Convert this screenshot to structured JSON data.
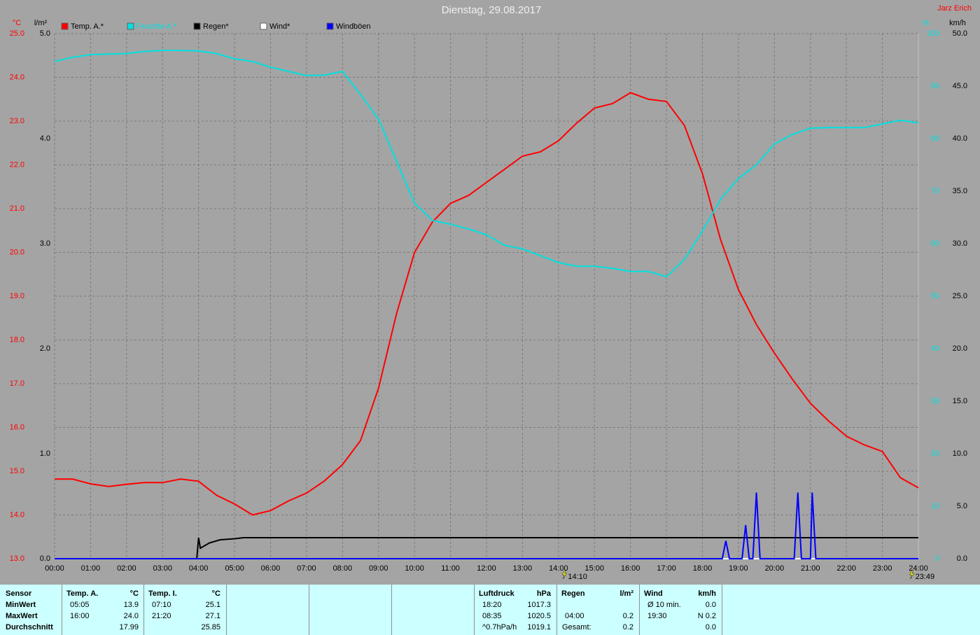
{
  "chart_data": {
    "type": "line",
    "title": "Dienstag, 29.08.2017",
    "author": "Jarz Erich",
    "y_label": "°C",
    "y2_label": "l/m²",
    "y3_label": "%",
    "y4_label": "km/h",
    "xlim": [
      0,
      24
    ],
    "xticks": [
      {
        "value": 0,
        "label": "00:00"
      },
      {
        "value": 1,
        "label": "01:00"
      },
      {
        "value": 2,
        "label": "02:00"
      },
      {
        "value": 3,
        "label": "03:00"
      },
      {
        "value": 4,
        "label": "04:00"
      },
      {
        "value": 5,
        "label": "05:00"
      },
      {
        "value": 6,
        "label": "06:00"
      },
      {
        "value": 7,
        "label": "07:00"
      },
      {
        "value": 8,
        "label": "08:00"
      },
      {
        "value": 9,
        "label": "09:00"
      },
      {
        "value": 10,
        "label": "10:00"
      },
      {
        "value": 11,
        "label": "11:00"
      },
      {
        "value": 12,
        "label": "12:00"
      },
      {
        "value": 13,
        "label": "13:00"
      },
      {
        "value": 14,
        "label": "14:00"
      },
      {
        "value": 15,
        "label": "15:00"
      },
      {
        "value": 16,
        "label": "16:00"
      },
      {
        "value": 17,
        "label": "17:00"
      },
      {
        "value": 18,
        "label": "18:00"
      },
      {
        "value": 19,
        "label": "19:00"
      },
      {
        "value": 20,
        "label": "20:00"
      },
      {
        "value": 21,
        "label": "21:00"
      },
      {
        "value": 22,
        "label": "22:00"
      },
      {
        "value": 23,
        "label": "23:00"
      },
      {
        "value": 24,
        "label": "24:00"
      }
    ],
    "ylim": [
      13,
      25
    ],
    "yticks": [
      {
        "value": 13,
        "label": "13.0"
      },
      {
        "value": 14,
        "label": "14.0"
      },
      {
        "value": 15,
        "label": "15.0"
      },
      {
        "value": 16,
        "label": "16.0"
      },
      {
        "value": 17,
        "label": "17.0"
      },
      {
        "value": 18,
        "label": "18.0"
      },
      {
        "value": 19,
        "label": "19.0"
      },
      {
        "value": 20,
        "label": "20.0"
      },
      {
        "value": 21,
        "label": "21.0"
      },
      {
        "value": 22,
        "label": "22.0"
      },
      {
        "value": 23,
        "label": "23.0"
      },
      {
        "value": 24,
        "label": "24.0"
      },
      {
        "value": 25,
        "label": "25.0"
      }
    ],
    "y2lim": [
      0,
      5
    ],
    "y2ticks": [
      {
        "value": 0,
        "label": "0.0"
      },
      {
        "value": 1,
        "label": "1.0"
      },
      {
        "value": 2,
        "label": "2.0"
      },
      {
        "value": 3,
        "label": "3.0"
      },
      {
        "value": 4,
        "label": "4.0"
      },
      {
        "value": 5,
        "label": "5.0"
      }
    ],
    "y3lim": [
      0,
      100
    ],
    "y3ticks": [
      0,
      10,
      20,
      30,
      40,
      50,
      60,
      70,
      80,
      90,
      100
    ],
    "y4lim": [
      0,
      50
    ],
    "y4ticks": [
      {
        "value": 0,
        "label": "0.0"
      },
      {
        "value": 5,
        "label": "5.0"
      },
      {
        "value": 10,
        "label": "10.0"
      },
      {
        "value": 15,
        "label": "15.0"
      },
      {
        "value": 20,
        "label": "20.0"
      },
      {
        "value": 25,
        "label": "25.0"
      },
      {
        "value": 30,
        "label": "30.0"
      },
      {
        "value": 35,
        "label": "35.0"
      },
      {
        "value": 40,
        "label": "40.0"
      },
      {
        "value": 45,
        "label": "45.0"
      },
      {
        "value": 50,
        "label": "50.0"
      }
    ],
    "grid": true,
    "series": [
      {
        "name": "Temp. A.*",
        "color": "#ff0000",
        "axis": "y",
        "x": [
          0,
          0.5,
          1,
          1.5,
          2,
          2.5,
          3,
          3.5,
          4,
          4.5,
          5,
          5.5,
          6,
          6.5,
          7,
          7.5,
          8,
          8.5,
          9,
          9.5,
          10,
          10.5,
          11,
          11.5,
          12,
          12.5,
          13,
          13.5,
          14,
          14.5,
          15,
          15.5,
          16,
          16.5,
          17,
          17.5,
          18,
          18.5,
          19,
          19.5,
          20,
          20.5,
          21,
          21.5,
          22,
          22.5,
          23,
          23.5,
          24
        ],
        "values": [
          14.82,
          14.82,
          14.71,
          14.65,
          14.7,
          14.74,
          14.74,
          14.82,
          14.77,
          14.45,
          14.25,
          14.0,
          14.1,
          14.32,
          14.5,
          14.78,
          15.15,
          15.7,
          16.9,
          18.6,
          20.0,
          20.7,
          21.12,
          21.3,
          21.6,
          21.9,
          22.2,
          22.3,
          22.55,
          22.95,
          23.3,
          23.4,
          23.65,
          23.5,
          23.45,
          22.9,
          21.8,
          20.3,
          19.15,
          18.35,
          17.7,
          17.1,
          16.55,
          16.15,
          15.8,
          15.6,
          15.45,
          14.85,
          14.62
        ]
      },
      {
        "name": "Feuchte A.*",
        "color": "#00e0e0",
        "axis": "y3",
        "x": [
          0,
          0.5,
          1,
          1.5,
          2,
          2.5,
          3,
          3.5,
          4,
          4.5,
          5,
          5.5,
          6,
          6.5,
          7,
          7.5,
          8,
          8.5,
          9,
          9.5,
          10,
          10.5,
          11,
          11.5,
          12,
          12.5,
          13,
          13.5,
          14,
          14.5,
          15,
          15.5,
          16,
          16.5,
          17,
          17.5,
          18,
          18.5,
          19,
          19.5,
          20,
          20.5,
          21,
          21.5,
          22,
          22.5,
          23,
          23.5,
          24
        ],
        "values": [
          94.7,
          95.5,
          96,
          96.1,
          96.2,
          96.6,
          96.8,
          96.8,
          96.7,
          96.2,
          95.2,
          94.7,
          93.6,
          92.8,
          92,
          92.1,
          92.8,
          88.4,
          83.7,
          75.7,
          67.7,
          64.4,
          63.7,
          62.8,
          61.7,
          59.7,
          59,
          57.7,
          56.4,
          55.7,
          55.7,
          55.3,
          54.7,
          54.7,
          53.7,
          57,
          62.4,
          68.4,
          72.4,
          75,
          79,
          80.8,
          82,
          82.1,
          82.1,
          82.1,
          82.8,
          83.5,
          83
        ]
      },
      {
        "name": "Regen*",
        "color": "#000000",
        "axis": "y2",
        "x": [
          0,
          3.95,
          4.0,
          4.05,
          4.3,
          4.6,
          5.0,
          5.25,
          24
        ],
        "values": [
          0,
          0,
          0.2,
          0.1,
          0.15,
          0.18,
          0.19,
          0.2,
          0.2
        ]
      },
      {
        "name": "Wind*",
        "color": "#ffffff",
        "axis": "y4",
        "x": [
          0,
          24
        ],
        "values": [
          0,
          0
        ]
      },
      {
        "name": "Windböen",
        "color": "#0000ff",
        "axis": "y4",
        "x": [
          0,
          18.55,
          18.65,
          18.75,
          19.1,
          19.2,
          19.3,
          19.4,
          19.5,
          19.6,
          20.55,
          20.65,
          20.75,
          21.0,
          21.05,
          21.15,
          24
        ],
        "values": [
          0,
          0,
          1.7,
          0,
          0,
          3.2,
          0,
          0,
          6.3,
          0,
          0,
          6.3,
          0,
          0,
          6.3,
          0,
          0
        ]
      }
    ],
    "annotations": [
      {
        "x": 14.1667,
        "label": "14:10"
      },
      {
        "x": 23.8167,
        "label": "23:49"
      }
    ]
  },
  "summary_table": {
    "row_labels": [
      "Sensor",
      "MinWert",
      "MaxWert",
      "Durchschnitt"
    ],
    "blocks": [
      {
        "header": "Temp. A.",
        "unit": "°C",
        "rows": [
          [
            "05:05",
            "13.9"
          ],
          [
            "16:00",
            "24.0"
          ],
          [
            null,
            "17.99"
          ]
        ]
      },
      {
        "header": "Temp. I.",
        "unit": "°C",
        "rows": [
          [
            "07:10",
            "25.1"
          ],
          [
            "21:20",
            "27.1"
          ],
          [
            null,
            "25.85"
          ]
        ]
      },
      {
        "header": "Luftdruck",
        "unit": "hPa",
        "rows": [
          [
            "18:20",
            "1017.3"
          ],
          [
            "08:35",
            "1020.5"
          ],
          [
            "^0.7hPa/h",
            "1019.1"
          ]
        ]
      },
      {
        "header": "Regen",
        "unit": "l/m²",
        "rows": [
          [
            null,
            null
          ],
          [
            "04:00",
            "0.2"
          ],
          [
            "Gesamt:",
            "0.2"
          ]
        ]
      },
      {
        "header": "Wind",
        "unit": "km/h",
        "rows": [
          [
            "Ø 10 min.",
            "0.0"
          ],
          [
            "19:30",
            "N 0.2"
          ],
          [
            null,
            "0.0"
          ]
        ]
      }
    ]
  }
}
